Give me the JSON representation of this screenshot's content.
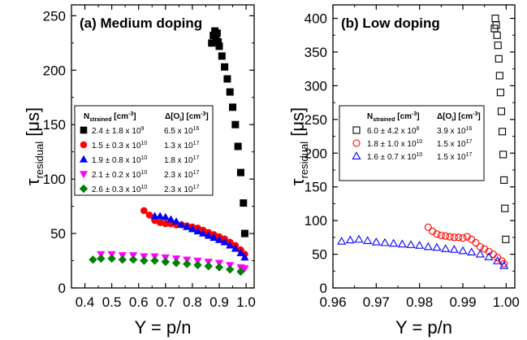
{
  "chart_data": [
    {
      "type": "scatter",
      "title": "(a) Medium doping",
      "xlabel": "Y = p/n",
      "ylabel_main": "τ",
      "ylabel_sub": "residual",
      "ylabel_unit": "[μs]",
      "xlim": [
        0.35,
        1.03
      ],
      "ylim": [
        0,
        260
      ],
      "xticks": [
        0.4,
        0.5,
        0.6,
        0.7,
        0.8,
        0.9,
        1.0
      ],
      "xtick_labels": [
        "0.4",
        "0.5",
        "0.6",
        "0.7",
        "0.8",
        "0.9",
        "1.0"
      ],
      "yticks": [
        0,
        50,
        100,
        150,
        200,
        250
      ],
      "ytick_labels": [
        "0",
        "50",
        "100",
        "150",
        "200",
        "250"
      ],
      "legend_position": "middle-left",
      "legend_headers": {
        "n_main": "N",
        "n_sub": "strained",
        "n_unit": " [cm",
        "n_exp": "-3",
        "n_close": "]",
        "o_main": "Δ[O",
        "o_sub": "i",
        "o_unit": "] [cm",
        "o_exp": "-3",
        "o_close": "]"
      },
      "series": [
        {
          "color": "#000000",
          "marker": "square",
          "filled": true,
          "legend_n": "2.4 ± 1.8 x 10",
          "legend_n_exp": "9",
          "legend_o": "6.5 x 10",
          "legend_o_exp": "16",
          "x": [
            0.872,
            0.878,
            0.884,
            0.888,
            0.892,
            0.896,
            0.9,
            0.91,
            0.92,
            0.93,
            0.94,
            0.95,
            0.96,
            0.97,
            0.98,
            0.99,
            0.995
          ],
          "y": [
            225,
            232,
            236,
            228,
            234,
            226,
            222,
            213,
            203,
            192,
            180,
            166,
            150,
            130,
            106,
            78,
            50
          ]
        },
        {
          "color": "#ff0000",
          "marker": "circle",
          "filled": true,
          "legend_n": "1.5 ± 0.3 x 10",
          "legend_n_exp": "10",
          "legend_o": "1.3 x 10",
          "legend_o_exp": "17",
          "x": [
            0.62,
            0.64,
            0.66,
            0.68,
            0.7,
            0.72,
            0.74,
            0.76,
            0.78,
            0.8,
            0.82,
            0.84,
            0.86,
            0.88,
            0.9,
            0.92,
            0.94,
            0.96,
            0.98,
            0.995
          ],
          "y": [
            71,
            67,
            62,
            60,
            59,
            59,
            58,
            58,
            57,
            56,
            55,
            53,
            51,
            49,
            47,
            45,
            42,
            39,
            35,
            31
          ]
        },
        {
          "color": "#0000ff",
          "marker": "triangle-up",
          "filled": true,
          "legend_n": "1.9 ± 0.8 x 10",
          "legend_n_exp": "10",
          "legend_o": "1.8 x 10",
          "legend_o_exp": "17",
          "x": [
            0.66,
            0.68,
            0.7,
            0.72,
            0.74,
            0.76,
            0.78,
            0.8,
            0.82,
            0.84,
            0.86,
            0.88,
            0.9,
            0.92,
            0.94,
            0.96,
            0.98,
            0.995
          ],
          "y": [
            66,
            66,
            65,
            63,
            61,
            58,
            56,
            54,
            52,
            50,
            48,
            46,
            44,
            42,
            39,
            36,
            32,
            28
          ]
        },
        {
          "color": "#ff00ff",
          "marker": "triangle-down",
          "filled": true,
          "legend_n": "2.1 ± 0.2 x 10",
          "legend_n_exp": "10",
          "legend_o": "2.3 x 10",
          "legend_o_exp": "17",
          "x": [
            0.46,
            0.5,
            0.54,
            0.58,
            0.62,
            0.66,
            0.7,
            0.74,
            0.78,
            0.82,
            0.86,
            0.9,
            0.94,
            0.98,
            0.995
          ],
          "y": [
            31,
            31,
            30,
            30,
            29,
            29,
            28,
            27,
            26,
            25,
            24,
            23,
            21,
            19,
            18
          ]
        },
        {
          "color": "#008000",
          "marker": "diamond",
          "filled": true,
          "legend_n": "2.6 ± 0.3 x 10",
          "legend_n_exp": "10",
          "legend_o": "2.3 x 10",
          "legend_o_exp": "17",
          "x": [
            0.43,
            0.46,
            0.5,
            0.54,
            0.58,
            0.62,
            0.66,
            0.7,
            0.74,
            0.78,
            0.82,
            0.86,
            0.9,
            0.94,
            0.98
          ],
          "y": [
            26,
            27,
            27,
            26,
            26,
            25,
            25,
            24,
            23,
            22,
            21,
            20,
            19,
            17,
            15
          ]
        }
      ]
    },
    {
      "type": "scatter",
      "title": "(b) Low doping",
      "xlabel": "Y = p/n",
      "ylabel_main": "τ",
      "ylabel_sub": "residual",
      "ylabel_unit": "[μs]",
      "xlim": [
        0.96,
        1.002
      ],
      "ylim": [
        0,
        420
      ],
      "xticks": [
        0.96,
        0.97,
        0.98,
        0.99,
        1.0
      ],
      "xtick_labels": [
        "0.96",
        "0.97",
        "0.98",
        "0.99",
        "1.00"
      ],
      "yticks": [
        0,
        50,
        100,
        150,
        200,
        250,
        300,
        350,
        400
      ],
      "ytick_labels": [
        "0",
        "50",
        "100",
        "150",
        "200",
        "250",
        "300",
        "350",
        "400"
      ],
      "legend_position": "middle-left",
      "legend_headers": {
        "n_main": "N",
        "n_sub": "strained",
        "n_unit": " [cm",
        "n_exp": "-3",
        "n_close": "]",
        "o_main": "Δ[O",
        "o_sub": "i",
        "o_unit": "] [cm",
        "o_exp": "-3",
        "o_close": "]"
      },
      "series": [
        {
          "color": "#000000",
          "marker": "square",
          "filled": false,
          "legend_n": "6.0 ± 4.2 x 10",
          "legend_n_exp": "8",
          "legend_o": "3.9 x 10",
          "legend_o_exp": "16",
          "x": [
            0.9973,
            0.9975,
            0.9977,
            0.9979,
            0.9981,
            0.9983,
            0.9985,
            0.9987,
            0.9989,
            0.9991,
            0.9993,
            0.9995,
            0.9997,
            0.9999
          ],
          "y": [
            385,
            400,
            390,
            375,
            360,
            340,
            315,
            290,
            262,
            232,
            198,
            160,
            118,
            72
          ]
        },
        {
          "color": "#ff0000",
          "marker": "circle",
          "filled": false,
          "legend_n": "1.8 ± 1.0 x 10",
          "legend_n_exp": "10",
          "legend_o": "1.5 x 10",
          "legend_o_exp": "17",
          "x": [
            0.982,
            0.983,
            0.984,
            0.985,
            0.986,
            0.987,
            0.988,
            0.989,
            0.99,
            0.991,
            0.992,
            0.993,
            0.994,
            0.995,
            0.996,
            0.997,
            0.998,
            0.999,
            0.9995
          ],
          "y": [
            90,
            84,
            80,
            78,
            77,
            76,
            75,
            75,
            74,
            76,
            72,
            67,
            61,
            58,
            54,
            50,
            45,
            40,
            36
          ]
        },
        {
          "color": "#0000ff",
          "marker": "triangle-up",
          "filled": false,
          "legend_n": "1.6 ± 0.7 x 10",
          "legend_n_exp": "10",
          "legend_o": "1.5 x 10",
          "legend_o_exp": "17",
          "x": [
            0.962,
            0.964,
            0.966,
            0.968,
            0.97,
            0.972,
            0.974,
            0.976,
            0.978,
            0.98,
            0.982,
            0.984,
            0.986,
            0.988,
            0.99,
            0.992,
            0.994,
            0.996,
            0.998,
            0.9995
          ],
          "y": [
            69,
            71,
            72,
            70,
            68,
            67,
            66,
            65,
            64,
            63,
            61,
            60,
            58,
            57,
            55,
            53,
            50,
            46,
            40,
            33
          ]
        }
      ]
    }
  ]
}
